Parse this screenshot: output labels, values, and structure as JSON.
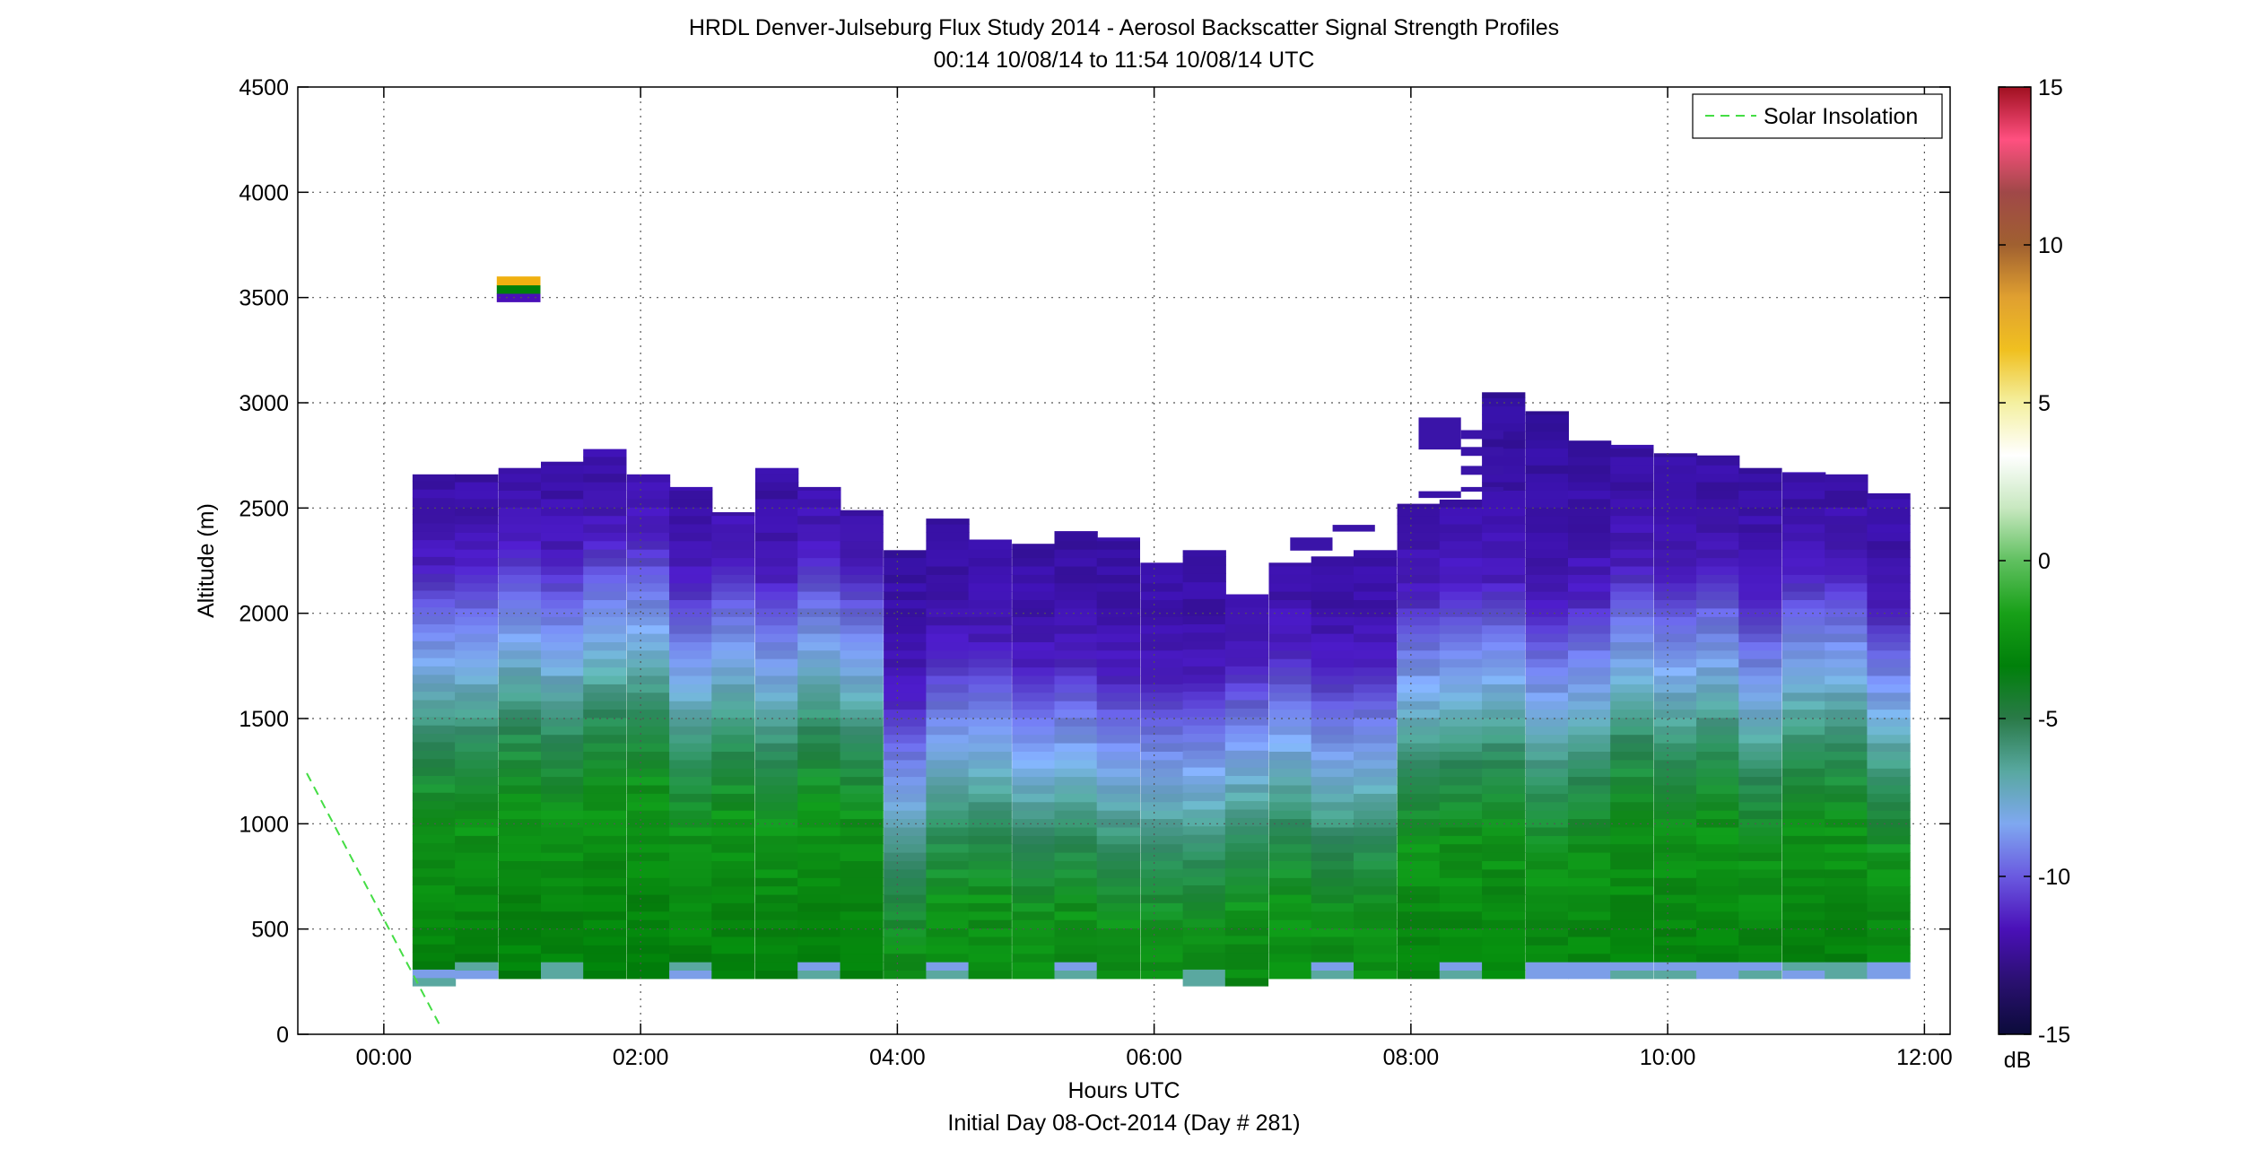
{
  "chart_data": {
    "type": "heatmap",
    "title": "HRDL Denver-Julseburg Flux Study 2014 - Aerosol Backscatter Signal Strength Profiles",
    "subtitle": "00:14 10/08/14 to 11:54 10/08/14  UTC",
    "xlabel": "Hours UTC",
    "xlabel2": "Initial Day 08-Oct-2014 (Day # 281)",
    "ylabel": "Altitude (m)",
    "xlim": [
      -0.67,
      12.2
    ],
    "ylim": [
      0,
      4500
    ],
    "x_ticks": [
      0,
      2,
      4,
      6,
      8,
      10,
      12
    ],
    "x_tick_labels": [
      "00:00",
      "02:00",
      "04:00",
      "06:00",
      "08:00",
      "10:00",
      "12:00"
    ],
    "y_ticks": [
      0,
      500,
      1000,
      1500,
      2000,
      2500,
      3000,
      3500,
      4000,
      4500
    ],
    "y_tick_labels": [
      "0",
      "500",
      "1000",
      "1500",
      "2000",
      "2500",
      "3000",
      "3500",
      "4000",
      "4500"
    ],
    "grid": true,
    "legend": {
      "position": "top-right",
      "entries": [
        {
          "label": "Solar Insolation",
          "color": "#44dd44",
          "style": "dashed"
        }
      ]
    },
    "colorbar": {
      "label": "dB",
      "range": [
        -15,
        15
      ],
      "ticks": [
        -15,
        -10,
        -5,
        0,
        5,
        10,
        15
      ],
      "tick_labels": [
        "-15",
        "-10",
        "-5",
        "0",
        "5",
        "10",
        "15"
      ],
      "colors": [
        "#0b0b3a",
        "#2a1070",
        "#4a10b8",
        "#6a5ae0",
        "#7fa8f0",
        "#58a8a0",
        "#2a7a48",
        "#00800a",
        "#18a018",
        "#60c060",
        "#c8e8c0",
        "#ffffff",
        "#f4f0a0",
        "#f0c020",
        "#e0a030",
        "#a06030",
        "#a04848",
        "#ff5080",
        "#a01020"
      ]
    },
    "solar_insolation": {
      "x": [
        -0.6,
        0.43
      ],
      "y": [
        1240,
        50
      ]
    },
    "profiles": [
      {
        "t": 0.39,
        "base": 230,
        "top": 2660
      },
      {
        "t": 0.72,
        "base": 265,
        "top": 2660
      },
      {
        "t": 1.06,
        "base": 265,
        "top": 2690
      },
      {
        "t": 1.39,
        "base": 265,
        "top": 2720
      },
      {
        "t": 1.72,
        "base": 265,
        "top": 2780
      },
      {
        "t": 2.06,
        "base": 265,
        "top": 2660
      },
      {
        "t": 2.39,
        "base": 265,
        "top": 2600
      },
      {
        "t": 2.72,
        "base": 265,
        "top": 2480
      },
      {
        "t": 3.06,
        "base": 265,
        "top": 2690
      },
      {
        "t": 3.39,
        "base": 265,
        "top": 2600
      },
      {
        "t": 3.72,
        "base": 265,
        "top": 2490
      },
      {
        "t": 4.06,
        "base": 265,
        "top": 2300
      },
      {
        "t": 4.39,
        "base": 265,
        "top": 2450
      },
      {
        "t": 4.72,
        "base": 265,
        "top": 2350
      },
      {
        "t": 5.06,
        "base": 265,
        "top": 2330
      },
      {
        "t": 5.39,
        "base": 265,
        "top": 2390
      },
      {
        "t": 5.72,
        "base": 265,
        "top": 2360
      },
      {
        "t": 6.06,
        "base": 265,
        "top": 2240
      },
      {
        "t": 6.39,
        "base": 230,
        "top": 2300
      },
      {
        "t": 6.72,
        "base": 230,
        "top": 2090
      },
      {
        "t": 7.06,
        "base": 265,
        "top": 2240
      },
      {
        "t": 7.39,
        "base": 265,
        "top": 2270
      },
      {
        "t": 7.72,
        "base": 265,
        "top": 2300
      },
      {
        "t": 8.06,
        "base": 265,
        "top": 2520
      },
      {
        "t": 8.39,
        "base": 265,
        "top": 2540
      },
      {
        "t": 8.72,
        "base": 265,
        "top": 3050
      },
      {
        "t": 9.06,
        "base": 265,
        "top": 2960
      },
      {
        "t": 9.39,
        "base": 265,
        "top": 2820
      },
      {
        "t": 9.72,
        "base": 265,
        "top": 2800
      },
      {
        "t": 10.06,
        "base": 265,
        "top": 2760
      },
      {
        "t": 10.39,
        "base": 265,
        "top": 2750
      },
      {
        "t": 10.72,
        "base": 265,
        "top": 2690
      },
      {
        "t": 11.06,
        "base": 265,
        "top": 2670
      },
      {
        "t": 11.39,
        "base": 265,
        "top": 2660
      },
      {
        "t": 11.72,
        "base": 265,
        "top": 2570
      }
    ],
    "isolated_features": [
      {
        "t0": 0.88,
        "t1": 1.22,
        "y0": 3480,
        "y1": 3600,
        "layers": [
          "#4a10b8",
          "#00800a",
          "#f0b010"
        ]
      },
      {
        "t0": 7.06,
        "t1": 7.39,
        "y0": 2300,
        "y1": 2360,
        "layers": [
          "#3a14a8"
        ]
      },
      {
        "t0": 7.39,
        "t1": 7.72,
        "y0": 2390,
        "y1": 2420,
        "layers": [
          "#3a14a8"
        ]
      },
      {
        "t0": 8.06,
        "t1": 8.39,
        "y0": 2780,
        "y1": 2930,
        "layers": [
          "#3a14a8"
        ]
      },
      {
        "t0": 8.06,
        "t1": 8.39,
        "y0": 2550,
        "y1": 2580,
        "layers": [
          "#3a14a8"
        ]
      },
      {
        "t0": 8.39,
        "t1": 8.72,
        "y0": 2830,
        "y1": 2870,
        "layers": [
          "#3a14a8"
        ]
      },
      {
        "t0": 8.39,
        "t1": 8.72,
        "y0": 2750,
        "y1": 2790,
        "layers": [
          "#3a14a8"
        ]
      },
      {
        "t0": 8.39,
        "t1": 8.72,
        "y0": 2660,
        "y1": 2700,
        "layers": [
          "#3a14a8"
        ]
      },
      {
        "t0": 8.39,
        "t1": 8.72,
        "y0": 2580,
        "y1": 2600,
        "layers": [
          "#3a14a8"
        ]
      }
    ]
  }
}
